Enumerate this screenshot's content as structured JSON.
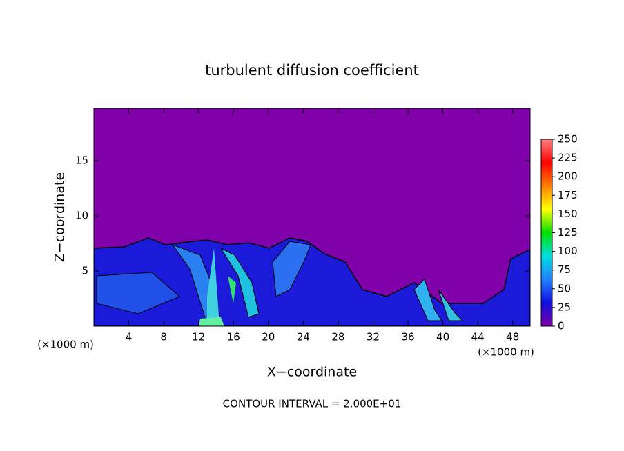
{
  "chart_data": {
    "type": "heatmap",
    "title": "turbulent diffusion coefficient",
    "x_label": "X−coordinate",
    "y_label": "Z−coordinate",
    "x_unit": "(×1000 m)",
    "y_unit": "(×1000 m)",
    "note": "CONTOUR INTERVAL = 2.000E+01",
    "xlim": [
      0,
      50
    ],
    "xticks": [
      4,
      8,
      12,
      16,
      20,
      24,
      28,
      32,
      36,
      40,
      44,
      48
    ],
    "ylim": [
      0,
      19.75
    ],
    "yticks": [
      5,
      10,
      15
    ],
    "clim": [
      0,
      250
    ],
    "cticks": [
      0,
      25,
      50,
      75,
      100,
      125,
      150,
      175,
      200,
      225,
      250
    ],
    "colormap": [
      "#8000aa",
      "#1010e0",
      "#2080ff",
      "#00e0e0",
      "#00e000",
      "#ffff00",
      "#ff8000",
      "#ff0000",
      "#ff8080"
    ],
    "grid": false
  }
}
